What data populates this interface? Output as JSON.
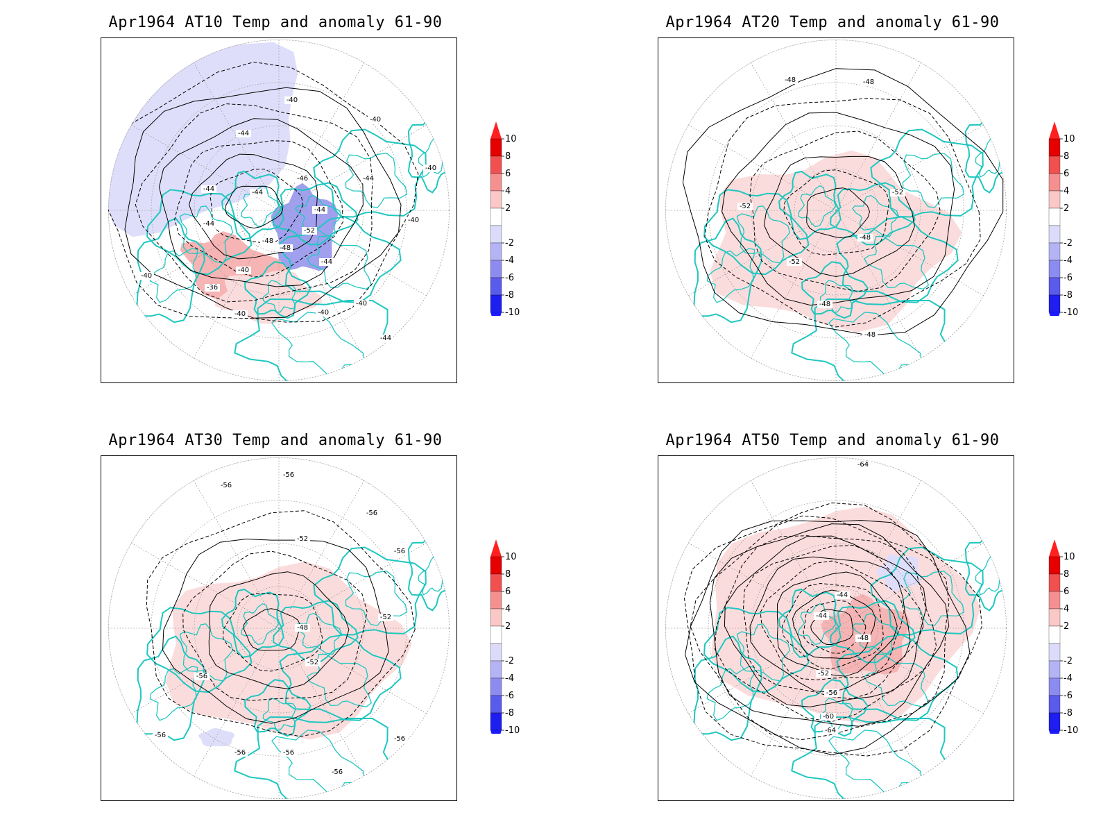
{
  "panels": [
    {
      "title": "Apr1964 AT10 Temp and anomaly 61-90",
      "contour_labels": [
        "-40",
        "-44",
        "-40",
        "-40",
        "-44",
        "-44",
        "-44",
        "-44",
        "-46",
        "-44",
        "-52",
        "-40",
        "-48",
        "-48",
        "-44",
        "-40",
        "-36",
        "-40",
        "-40",
        "-40",
        "-40",
        "-44"
      ],
      "anomalies": [
        {
          "sign": "negative",
          "strength": "weak"
        },
        {
          "sign": "negative",
          "strength": "strong"
        },
        {
          "sign": "positive",
          "strength": "medium"
        },
        {
          "sign": "positive",
          "strength": "weak"
        }
      ]
    },
    {
      "title": "Apr1964 AT20 Temp and anomaly 61-90",
      "contour_labels": [
        "-48",
        "-48",
        "-52",
        "-52",
        "-48",
        "-52",
        "-48",
        "-48"
      ],
      "anomalies": [
        {
          "sign": "positive",
          "strength": "weak"
        }
      ]
    },
    {
      "title": "Apr1964 AT30 Temp and anomaly 61-90",
      "contour_labels": [
        "-56",
        "-56",
        "-56",
        "-52",
        "-56",
        "-52",
        "-48",
        "-52",
        "-56",
        "-56",
        "-56",
        "-56",
        "-56",
        "-56"
      ],
      "anomalies": [
        {
          "sign": "positive",
          "strength": "weak"
        },
        {
          "sign": "negative",
          "strength": "weak"
        }
      ]
    },
    {
      "title": "Apr1964 AT50 Temp and anomaly 61-90",
      "contour_labels": [
        "-64",
        "-44",
        "-44",
        "-48",
        "-52",
        "-56",
        "-60",
        "-64"
      ],
      "anomalies": [
        {
          "sign": "positive",
          "strength": "weak"
        },
        {
          "sign": "positive",
          "strength": "medium"
        },
        {
          "sign": "negative",
          "strength": "weak"
        }
      ]
    }
  ],
  "colorbar": {
    "labels": [
      "10",
      "8",
      "6",
      "4",
      "2",
      "-2",
      "-4",
      "-6",
      "-8",
      "-10"
    ],
    "colors": [
      "#e60000",
      "#f05050",
      "#f59090",
      "#fbc8c8",
      "#ffffff",
      "#dcdcfa",
      "#b4b4f5",
      "#8c8cf0",
      "#5a5aeb",
      "#1e1ef0"
    ],
    "top_arrow_color": "#ff2020",
    "bottom_arrow_color": "#1a1aff"
  },
  "colors": {
    "coastline": "#1fc7c0",
    "contour": "#000000",
    "grid": "#9a9a9a",
    "pos_weak": "#fbdcdc",
    "pos_medium": "#f6b4b4",
    "pos_strong": "#ee8282",
    "neg_weak": "#dedefa",
    "neg_strong": "#a0a0ee"
  }
}
